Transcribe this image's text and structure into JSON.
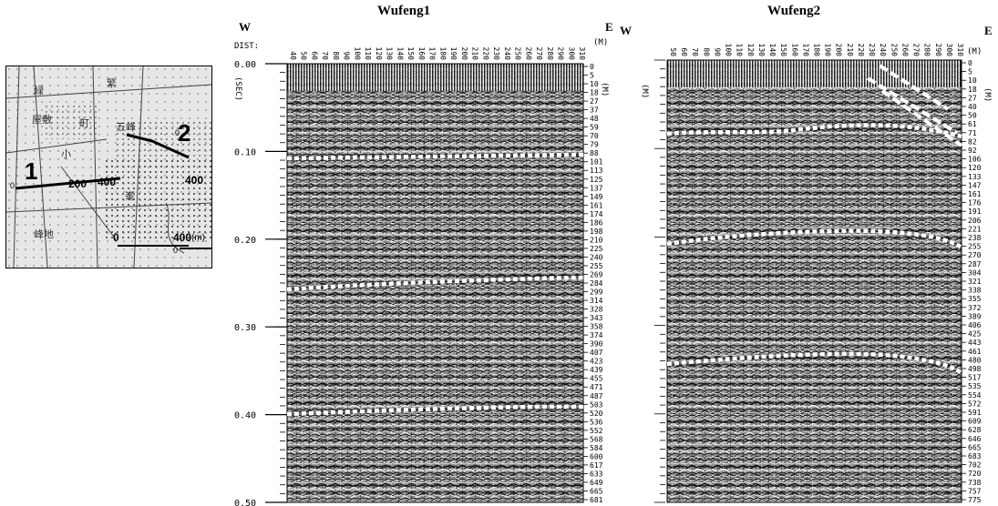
{
  "location_map": {
    "line1_label": "1",
    "line2_label": "2",
    "line1_tick_200": "200",
    "line1_tick_400": "400",
    "line2_tick_400": "400",
    "scale_zero": "0",
    "scale_max": "400",
    "scale_unit": "(m)"
  },
  "sections": [
    {
      "title": "Wufeng1",
      "left_dir": "W",
      "right_dir": "E",
      "dist_label": "DIST:",
      "dist_unit": "(M)",
      "dist_ticks": [
        "40",
        "50",
        "60",
        "70",
        "80",
        "90",
        "100",
        "110",
        "120",
        "130",
        "140",
        "150",
        "160",
        "170",
        "180",
        "190",
        "200",
        "210",
        "220",
        "230",
        "240",
        "250",
        "260",
        "270",
        "280",
        "290",
        "300",
        "310"
      ],
      "depth_unit": "(M)",
      "depth_ticks": [
        "0",
        "5",
        "10",
        "18",
        "27",
        "37",
        "48",
        "59",
        "70",
        "79",
        "88",
        "101",
        "113",
        "125",
        "137",
        "149",
        "161",
        "174",
        "186",
        "198",
        "210",
        "225",
        "240",
        "255",
        "269",
        "284",
        "299",
        "314",
        "328",
        "343",
        "358",
        "374",
        "390",
        "407",
        "423",
        "439",
        "455",
        "471",
        "487",
        "503",
        "520",
        "536",
        "552",
        "568",
        "584",
        "600",
        "617",
        "633",
        "649",
        "665",
        "681"
      ]
    },
    {
      "title": "Wufeng2",
      "left_dir": "W",
      "right_dir": "E",
      "dist_unit": "(M)",
      "dist_ticks": [
        "50",
        "60",
        "70",
        "80",
        "90",
        "100",
        "110",
        "120",
        "130",
        "140",
        "150",
        "160",
        "170",
        "180",
        "190",
        "200",
        "210",
        "220",
        "230",
        "240",
        "250",
        "260",
        "270",
        "280",
        "290",
        "300",
        "310"
      ],
      "depth_unit": "(M)",
      "depth_ticks": [
        "0",
        "5",
        "10",
        "18",
        "27",
        "40",
        "50",
        "61",
        "71",
        "82",
        "92",
        "106",
        "120",
        "133",
        "147",
        "161",
        "176",
        "191",
        "206",
        "221",
        "238",
        "255",
        "270",
        "287",
        "304",
        "321",
        "338",
        "355",
        "372",
        "389",
        "406",
        "425",
        "443",
        "461",
        "480",
        "498",
        "517",
        "535",
        "554",
        "572",
        "591",
        "609",
        "628",
        "646",
        "665",
        "683",
        "702",
        "720",
        "738",
        "757",
        "775"
      ]
    }
  ],
  "time_axis": {
    "unit": "(SEC)",
    "labels": [
      "0.00",
      "0.10",
      "0.20",
      "0.30",
      "0.40",
      "0.50"
    ]
  }
}
